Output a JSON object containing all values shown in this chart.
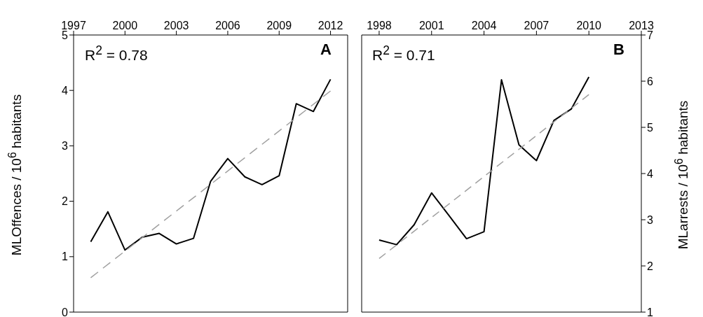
{
  "chart_data": [
    {
      "type": "line",
      "title": "A",
      "ylabel": "MLOffences / 10$^{6}$ habitants",
      "annotations": [
        "R$^{2}$ = 0.78"
      ],
      "x": [
        1998,
        1999,
        2000,
        2001,
        2002,
        2003,
        2004,
        2005,
        2006,
        2007,
        2008,
        2009,
        2010,
        2011,
        2012
      ],
      "xlim": [
        1997,
        2013
      ],
      "xticks": [
        1997,
        2000,
        2003,
        2006,
        2009,
        2012
      ],
      "ylim": [
        0,
        5
      ],
      "yticks": [
        0,
        1,
        2,
        3,
        4,
        5
      ],
      "grid": false,
      "series": [
        {
          "color": "#000000",
          "values": [
            1.27,
            1.81,
            1.12,
            1.35,
            1.42,
            1.23,
            1.33,
            2.36,
            2.77,
            2.44,
            2.3,
            2.46,
            3.76,
            3.62,
            4.2
          ]
        },
        {
          "type": "line",
          "color": "#a0a0a0",
          "line_style": "dashed",
          "x": [
            1998,
            2012
          ],
          "values": [
            0.62,
            3.99
          ]
        }
      ]
    },
    {
      "type": "line",
      "title": "B",
      "y2label": "MLarrests / 10$^{6}$ habitants",
      "annotations": [
        "R$^{2}$ = 0.71"
      ],
      "x": [
        1998,
        1999,
        2000,
        2001,
        2002,
        2003,
        2004,
        2005,
        2006,
        2007,
        2008,
        2009,
        2010
      ],
      "xlim": [
        1997,
        2013
      ],
      "xticks": [
        1998,
        2001,
        2004,
        2007,
        2010,
        2013
      ],
      "y2lim": [
        1,
        7
      ],
      "y2ticks": [
        1,
        2,
        3,
        4,
        5,
        6,
        7
      ],
      "grid": false,
      "series": [
        {
          "color": "#000000",
          "axis": "y2",
          "values": [
            2.56,
            2.46,
            2.89,
            3.58,
            3.09,
            2.59,
            2.74,
            6.03,
            4.62,
            4.28,
            5.15,
            5.4,
            6.09
          ]
        },
        {
          "type": "line",
          "color": "#a0a0a0",
          "axis": "y2",
          "line_style": "dashed",
          "x": [
            1998,
            2010
          ],
          "values": [
            2.16,
            5.71
          ]
        }
      ]
    }
  ]
}
